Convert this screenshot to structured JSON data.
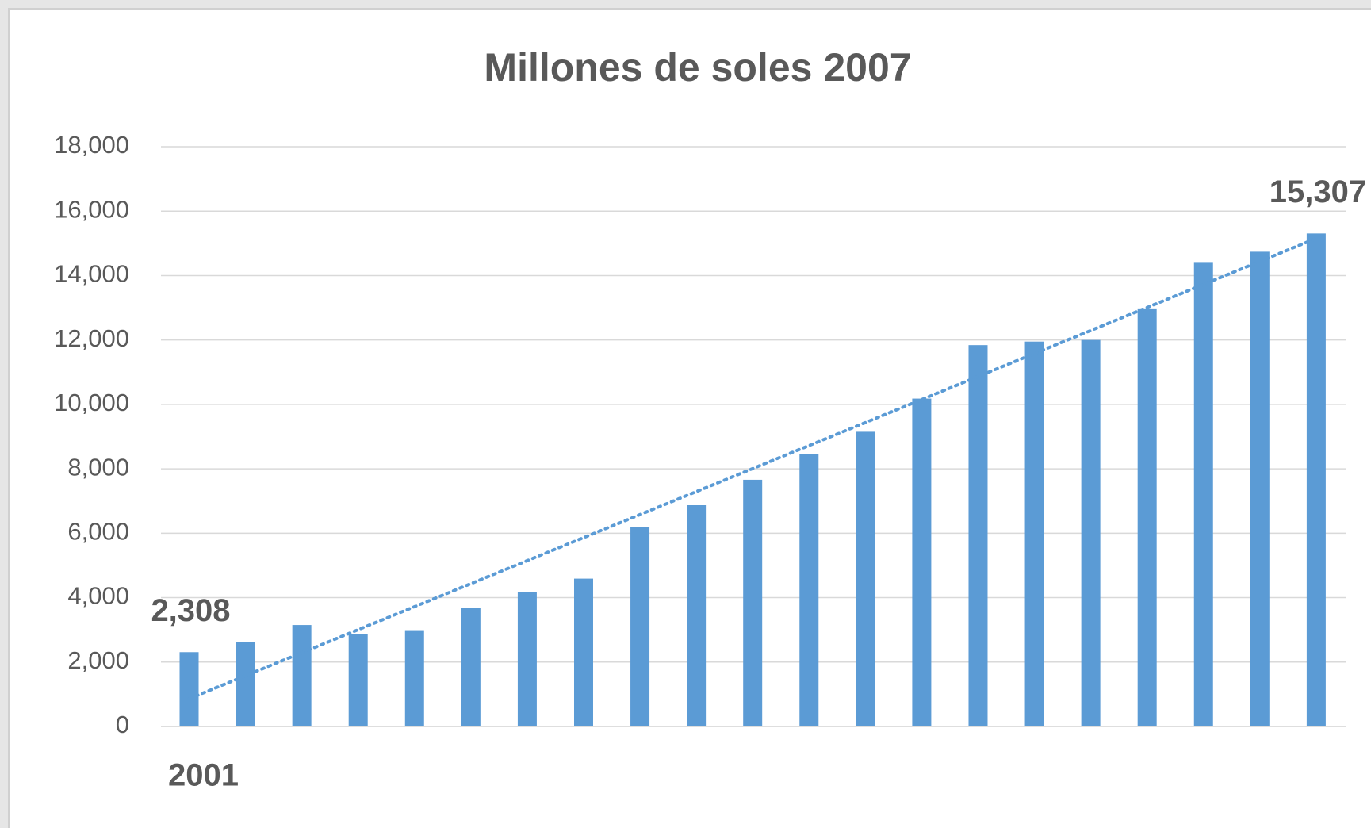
{
  "chart_data": {
    "type": "bar",
    "title": "Millones de soles 2007",
    "categories": [
      "2001",
      null,
      null,
      null,
      null,
      null,
      null,
      null,
      null,
      null,
      null,
      null,
      null,
      null,
      null,
      null,
      null,
      null,
      null,
      null,
      null
    ],
    "values": [
      2308,
      2630,
      3150,
      2880,
      2990,
      3670,
      4180,
      4590,
      6190,
      6870,
      7660,
      8470,
      9150,
      10180,
      11840,
      11950,
      12000,
      12980,
      14420,
      14740,
      15307
    ],
    "value_labels": [
      "2,308",
      null,
      null,
      null,
      null,
      null,
      null,
      null,
      null,
      null,
      null,
      null,
      null,
      null,
      null,
      null,
      null,
      null,
      null,
      null,
      "15,307"
    ],
    "color": "#5b9bd5",
    "ylim": [
      0,
      18000
    ],
    "yticks": [
      0,
      {
        "value": 2000,
        "label": "2,000"
      },
      {
        "value": 4000,
        "label": "4,000"
      },
      {
        "value": 6000,
        "label": "6,000"
      },
      {
        "value": 8000,
        "label": "8,000"
      },
      {
        "value": 10000,
        "label": "10,000"
      },
      {
        "value": 12000,
        "label": "12,000"
      },
      {
        "value": 14000,
        "label": "14,000"
      },
      {
        "value": 16000,
        "label": "16,000"
      },
      {
        "value": 18000,
        "label": "18,000"
      }
    ],
    "grid": true,
    "trendline": "linear"
  }
}
